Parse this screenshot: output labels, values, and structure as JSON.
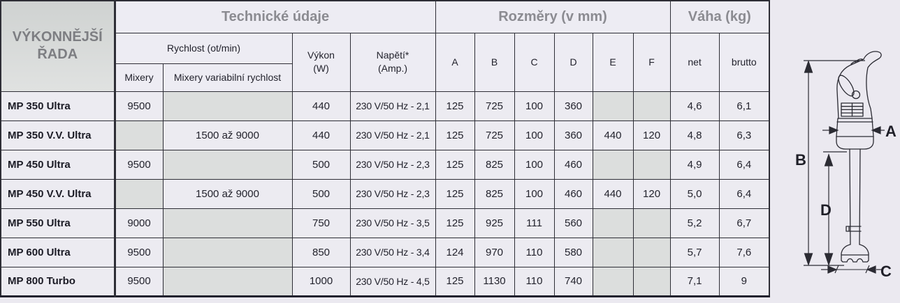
{
  "table": {
    "series_title_line1": "VÝKONNĚJŠÍ",
    "series_title_line2": "ŘADA",
    "groups": {
      "technical": "Technické údaje",
      "dimensions": "Rozměry (v mm)",
      "weight": "Váha (kg)"
    },
    "header": {
      "speed_group": "Rychlost (ot/min)",
      "mixery": "Mixery",
      "variable_speed": "Mixery variabilní rychlost",
      "power_line1": "Výkon",
      "power_line2": "(W)",
      "voltage_line1": "Napětí*",
      "voltage_line2": "(Amp.)",
      "dims": [
        "A",
        "B",
        "C",
        "D",
        "E",
        "F"
      ],
      "net": "net",
      "brutto": "brutto"
    },
    "rows": [
      {
        "model": "MP 350 Ultra",
        "mixery": "9500",
        "variable": "",
        "power": "440",
        "voltage": "230 V/50 Hz - 2,1",
        "A": "125",
        "B": "725",
        "C": "100",
        "D": "360",
        "E": "",
        "F": "",
        "net": "4,6",
        "brutto": "6,1"
      },
      {
        "model": "MP 350 V.V. Ultra",
        "mixery": "",
        "variable": "1500 až 9000",
        "power": "440",
        "voltage": "230 V/50 Hz - 2,1",
        "A": "125",
        "B": "725",
        "C": "100",
        "D": "360",
        "E": "440",
        "F": "120",
        "net": "4,8",
        "brutto": "6,3"
      },
      {
        "model": "MP 450 Ultra",
        "mixery": "9500",
        "variable": "",
        "power": "500",
        "voltage": "230 V/50 Hz - 2,3",
        "A": "125",
        "B": "825",
        "C": "100",
        "D": "460",
        "E": "",
        "F": "",
        "net": "4,9",
        "brutto": "6,4"
      },
      {
        "model": "MP 450 V.V. Ultra",
        "mixery": "",
        "variable": "1500 až 9000",
        "power": "500",
        "voltage": "230 V/50 Hz - 2,3",
        "A": "125",
        "B": "825",
        "C": "100",
        "D": "460",
        "E": "440",
        "F": "120",
        "net": "5,0",
        "brutto": "6,4"
      },
      {
        "model": "MP 550 Ultra",
        "mixery": "9000",
        "variable": "",
        "power": "750",
        "voltage": "230 V/50 Hz - 3,5",
        "A": "125",
        "B": "925",
        "C": "111",
        "D": "560",
        "E": "",
        "F": "",
        "net": "5,2",
        "brutto": "6,7"
      },
      {
        "model": "MP 600 Ultra",
        "mixery": "9500",
        "variable": "",
        "power": "850",
        "voltage": "230 V/50 Hz - 3,4",
        "A": "124",
        "B": "970",
        "C": "110",
        "D": "580",
        "E": "",
        "F": "",
        "net": "5,7",
        "brutto": "7,6"
      },
      {
        "model": "MP 800 Turbo",
        "mixery": "9500",
        "variable": "",
        "power": "1000",
        "voltage": "230 V/50 Hz - 4,5",
        "A": "125",
        "B": "1130",
        "C": "110",
        "D": "740",
        "E": "",
        "F": "",
        "net": "7,1",
        "brutto": "9"
      }
    ]
  },
  "diagram": {
    "labels": [
      "A",
      "B",
      "C",
      "D"
    ]
  },
  "colors": {
    "cell_bg": "#ecebf1",
    "header_bg": "#edecf3",
    "empty_cell_bg": "#dcdedd",
    "series_bg": "#d8dad9",
    "grid_line": "#2e2e36",
    "group_text": "#8b8b91",
    "data_text": "#23232d"
  }
}
